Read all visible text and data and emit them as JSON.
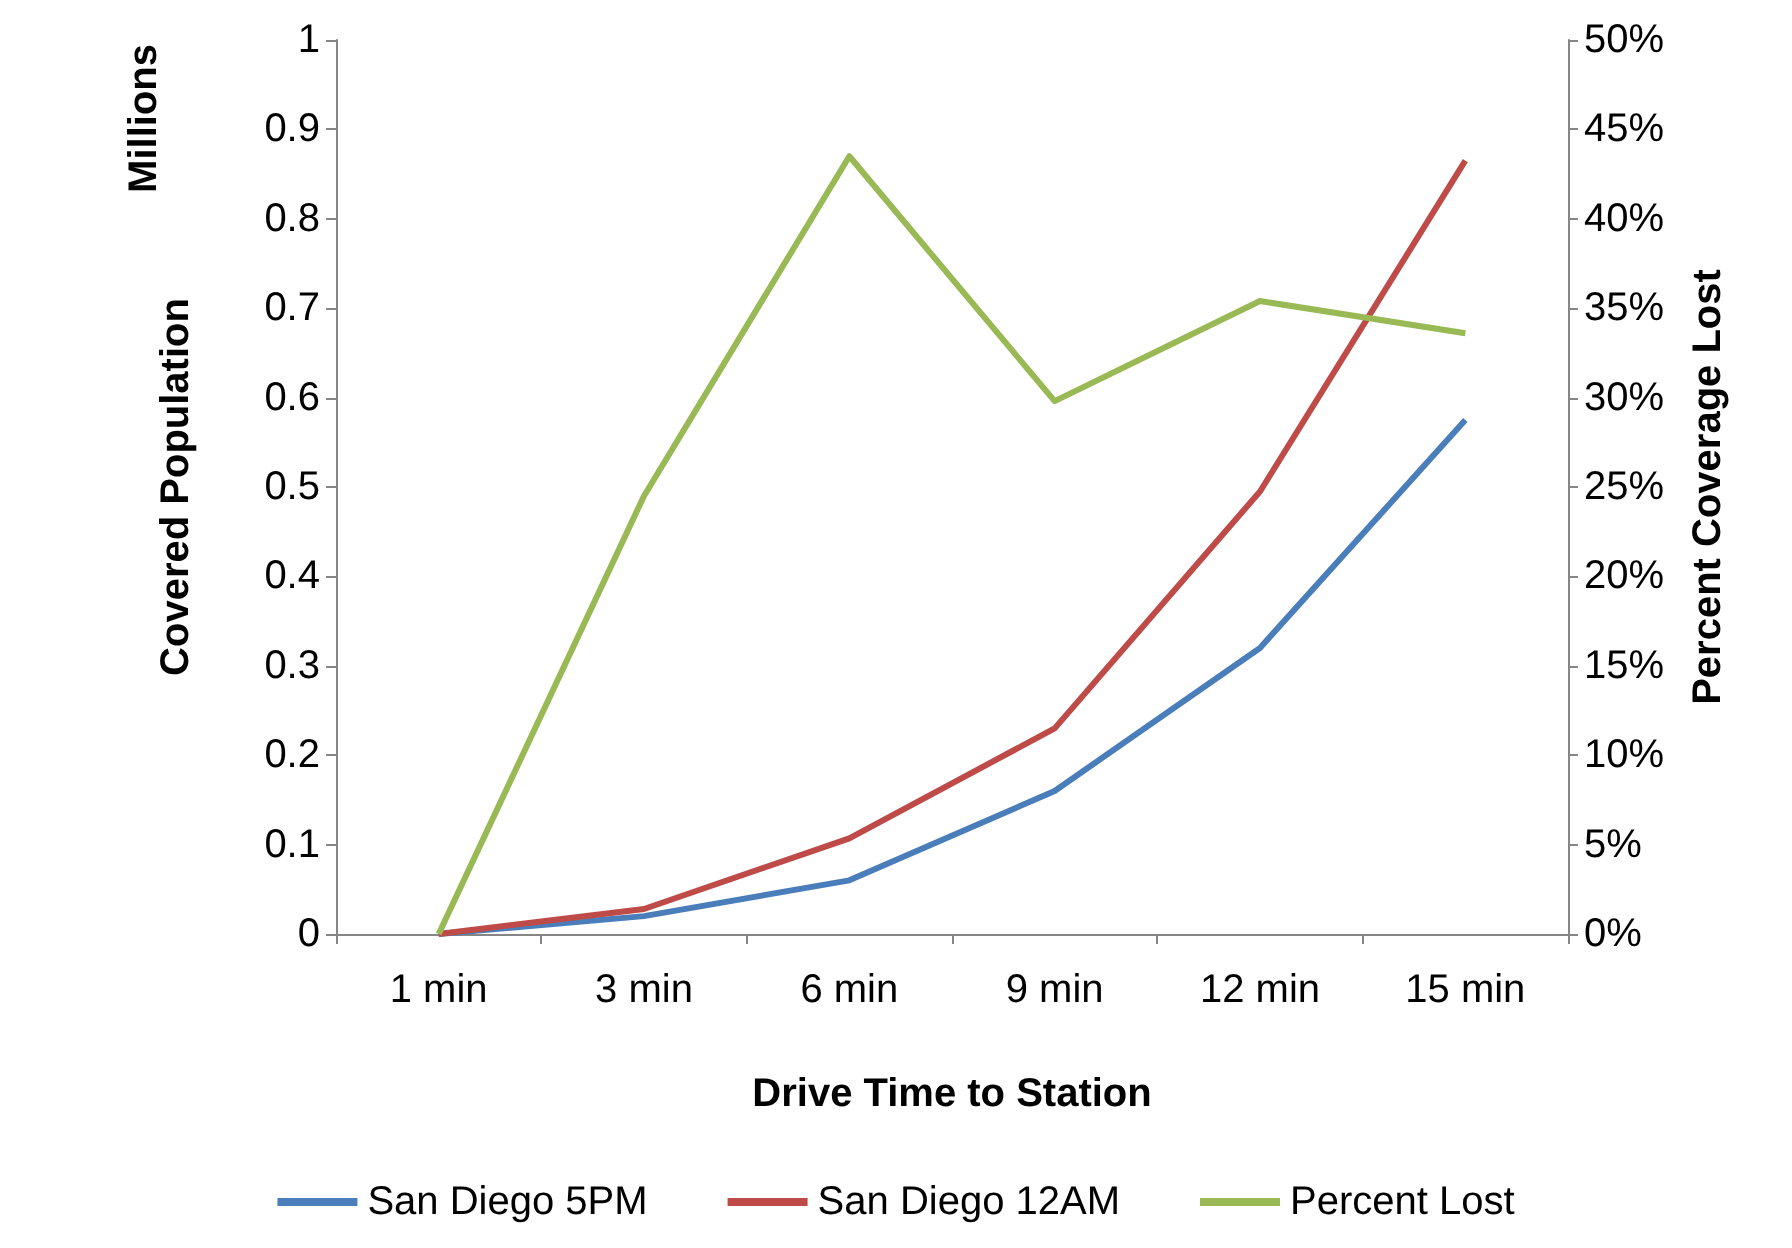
{
  "chart_data": {
    "type": "line",
    "xlabel": "Drive Time to Station",
    "ylabel": "Covered Population",
    "y2label": "Percent Coverage Lost",
    "annotations": [
      "Millions"
    ],
    "categories": [
      "1 min",
      "3 min",
      "6 min",
      "9 min",
      "12 min",
      "15 min"
    ],
    "series": [
      {
        "name": "San Diego 5PM",
        "color": "#4a7ebb",
        "values": [
          0,
          0.02,
          0.06,
          0.16,
          0.32,
          0.575
        ]
      },
      {
        "name": "San Diego 12AM",
        "color": "#be4b48",
        "values": [
          0,
          0.028,
          0.107,
          0.23,
          0.495,
          0.865
        ]
      },
      {
        "name": "Percent Lost",
        "color": "#98b954",
        "axis": "y2",
        "values": [
          0,
          24.5,
          43.5,
          29.8,
          35.4,
          33.6
        ]
      }
    ],
    "ylim": [
      0,
      1
    ],
    "yticks": [
      0,
      0.1,
      0.2,
      0.3,
      0.4,
      0.5,
      0.6,
      0.7,
      0.8,
      0.9,
      1
    ],
    "y2lim": [
      0,
      50
    ],
    "y2ticks": [
      {
        "value": 0,
        "label": "0%"
      },
      {
        "value": 5,
        "label": "5%"
      },
      {
        "value": 10,
        "label": "10%"
      },
      {
        "value": 15,
        "label": "15%"
      },
      {
        "value": 20,
        "label": "20%"
      },
      {
        "value": 25,
        "label": "25%"
      },
      {
        "value": 30,
        "label": "30%"
      },
      {
        "value": 35,
        "label": "35%"
      },
      {
        "value": 40,
        "label": "40%"
      },
      {
        "value": 45,
        "label": "45%"
      },
      {
        "value": 50,
        "label": "50%"
      }
    ],
    "grid": false,
    "legend": "bottom",
    "marker": "none",
    "line_style": "solid"
  }
}
